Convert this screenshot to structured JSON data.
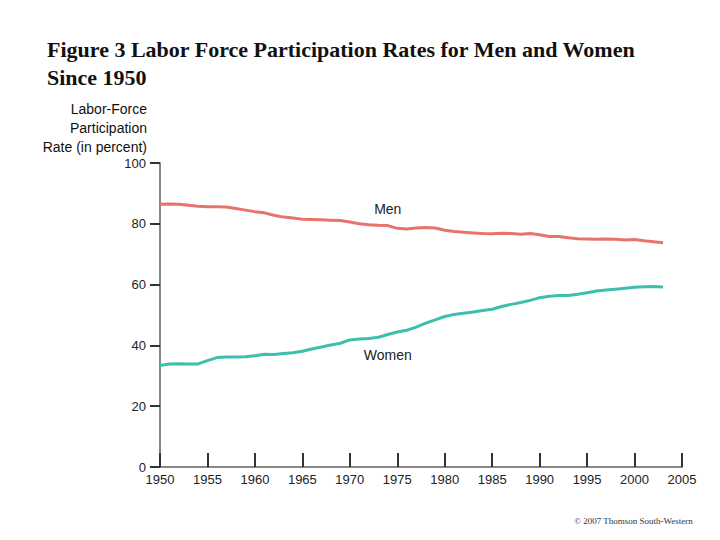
{
  "chart_data": {
    "type": "line",
    "title": "Figure 3 Labor Force Participation Rates for Men and Women Since 1950",
    "y_label": "Labor-Force\nParticipation\nRate (in percent)",
    "annotations": [
      "© 2007 Thomson South-Western"
    ],
    "x": [
      1950,
      1951,
      1952,
      1953,
      1954,
      1955,
      1956,
      1957,
      1958,
      1959,
      1960,
      1961,
      1962,
      1963,
      1964,
      1965,
      1966,
      1967,
      1968,
      1969,
      1970,
      1971,
      1972,
      1973,
      1974,
      1975,
      1976,
      1977,
      1978,
      1979,
      1980,
      1981,
      1982,
      1983,
      1984,
      1985,
      1986,
      1987,
      1988,
      1989,
      1990,
      1991,
      1992,
      1993,
      1994,
      1995,
      1996,
      1997,
      1998,
      1999,
      2000,
      2001,
      2002,
      2003
    ],
    "series": [
      {
        "name": "Men",
        "color": "#e8736a",
        "values": [
          86.4,
          86.5,
          86.4,
          86.1,
          85.8,
          85.6,
          85.6,
          85.5,
          85.0,
          84.5,
          84.0,
          83.6,
          82.8,
          82.2,
          81.9,
          81.5,
          81.4,
          81.3,
          81.2,
          81.1,
          80.6,
          80.0,
          79.7,
          79.5,
          79.4,
          78.5,
          78.3,
          78.6,
          78.8,
          78.6,
          77.9,
          77.5,
          77.2,
          77.0,
          76.8,
          76.7,
          76.9,
          76.8,
          76.6,
          76.8,
          76.4,
          75.8,
          75.8,
          75.4,
          75.1,
          75.0,
          74.9,
          75.0,
          74.9,
          74.7,
          74.8,
          74.4,
          74.1,
          73.8
        ]
      },
      {
        "name": "Women",
        "color": "#3dbfb0",
        "values": [
          33.4,
          33.9,
          34.0,
          33.9,
          33.9,
          35.0,
          36.0,
          36.2,
          36.2,
          36.3,
          36.6,
          37.1,
          37.0,
          37.3,
          37.6,
          38.1,
          38.8,
          39.5,
          40.1,
          40.7,
          41.8,
          42.1,
          42.3,
          42.7,
          43.6,
          44.4,
          45.0,
          46.0,
          47.3,
          48.4,
          49.5,
          50.2,
          50.6,
          51.0,
          51.5,
          51.9,
          52.8,
          53.5,
          54.1,
          54.8,
          55.7,
          56.2,
          56.4,
          56.4,
          56.8,
          57.3,
          57.9,
          58.2,
          58.5,
          58.8,
          59.1,
          59.3,
          59.4,
          59.2
        ]
      }
    ],
    "xlim": [
      1950,
      2005
    ],
    "xticks": [
      1950,
      1955,
      1960,
      1965,
      1970,
      1975,
      1980,
      1985,
      1990,
      1995,
      2000,
      2005
    ],
    "ylim": [
      0,
      100
    ],
    "yticks": [
      0,
      20,
      40,
      60,
      80,
      100
    ],
    "grid": false
  }
}
